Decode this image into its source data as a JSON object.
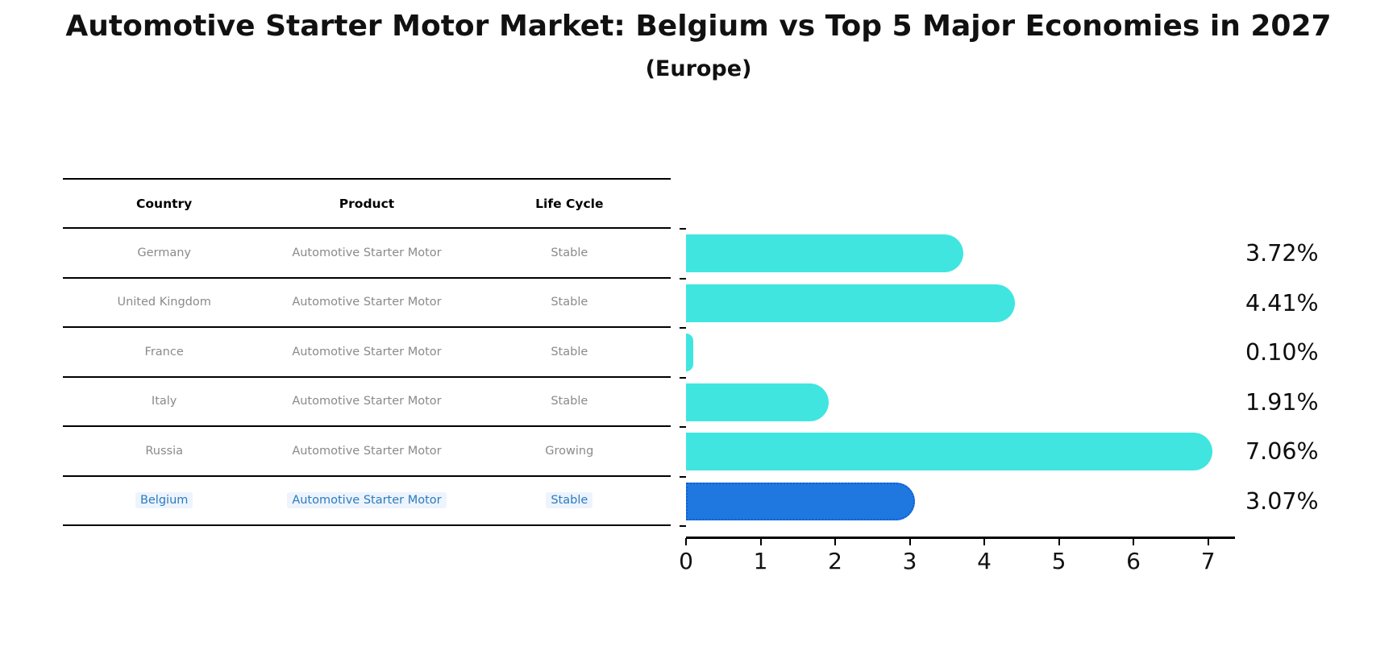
{
  "header": {
    "title": "Automotive Starter Motor Market: Belgium vs Top 5 Major Economies in 2027",
    "subtitle": "(Europe)"
  },
  "table": {
    "headers": [
      "Country",
      "Product",
      "Life Cycle"
    ],
    "rows": [
      {
        "country": "Germany",
        "product": "Automotive Starter Motor",
        "life_cycle": "Stable"
      },
      {
        "country": "United Kingdom",
        "product": "Automotive Starter Motor",
        "life_cycle": "Stable"
      },
      {
        "country": "France",
        "product": "Automotive Starter Motor",
        "life_cycle": "Stable"
      },
      {
        "country": "Italy",
        "product": "Automotive Starter Motor",
        "life_cycle": "Stable"
      },
      {
        "country": "Russia",
        "product": "Automotive Starter Motor",
        "life_cycle": "Growing"
      },
      {
        "country": "Belgium",
        "product": "Automotive Starter Motor",
        "life_cycle": "Stable"
      }
    ]
  },
  "chart_data": {
    "type": "bar",
    "orientation": "horizontal",
    "title": "Automotive Starter Motor Market: Belgium vs Top 5 Major Economies in 2027 (Europe)",
    "categories": [
      "Germany",
      "United Kingdom",
      "France",
      "Italy",
      "Russia",
      "Belgium"
    ],
    "values": [
      3.72,
      4.41,
      0.1,
      1.91,
      7.06,
      3.07
    ],
    "value_labels": [
      "3.72%",
      "4.41%",
      "0.10%",
      "1.91%",
      "7.06%",
      "3.07%"
    ],
    "life_cycle": [
      "Stable",
      "Stable",
      "Stable",
      "Stable",
      "Growing",
      "Stable"
    ],
    "highlight_index": 5,
    "highlight_category": "Belgium",
    "xticks": [
      "0",
      "1",
      "2",
      "3",
      "4",
      "5",
      "6",
      "7"
    ],
    "xlim": [
      0,
      7.35
    ],
    "grid": false,
    "legend": false,
    "colors": {
      "bar": "#40E5E0",
      "highlight_bar": "#1E78E0",
      "highlight_border": "#0F5FD0",
      "highlight_text": "#2B7BBF",
      "row_text": "#8A8A8A",
      "axis": "#000000"
    }
  }
}
